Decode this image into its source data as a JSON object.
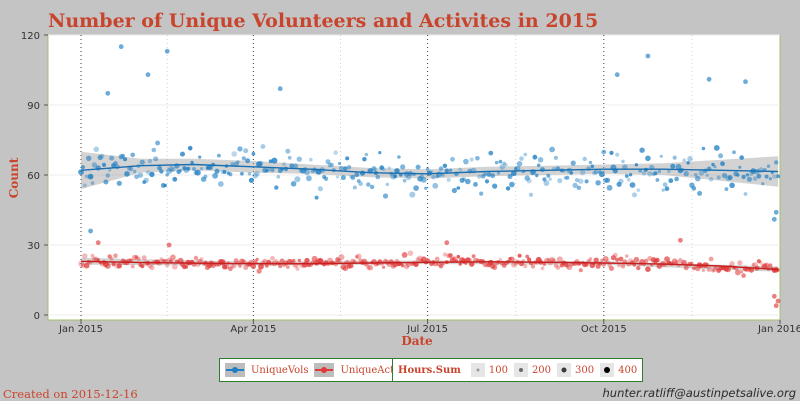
{
  "chart_data": {
    "type": "scatter",
    "title": "Number of Unique Volunteers and Activites in 2015",
    "xlabel": "Date",
    "ylabel": "Count",
    "x_range": [
      "2015-01-01",
      "2016-01-01"
    ],
    "ylim": [
      0,
      120
    ],
    "y_ticks": [
      0,
      30,
      60,
      90,
      120
    ],
    "x_ticks": [
      {
        "date": "2015-01-01",
        "label": "Jan 2015"
      },
      {
        "date": "2015-04-01",
        "label": "Apr 2015"
      },
      {
        "date": "2015-07-01",
        "label": "Jul 2015"
      },
      {
        "date": "2015-10-01",
        "label": "Oct 2015"
      },
      {
        "date": "2016-01-01",
        "label": "Jan 2016"
      }
    ],
    "series": [
      {
        "name": "UniqueVols",
        "color": "#1f7fc4",
        "smooth": [
          [
            "2015-01-01",
            62
          ],
          [
            "2015-02-01",
            64
          ],
          [
            "2015-03-01",
            64.5
          ],
          [
            "2015-04-01",
            63.5
          ],
          [
            "2015-05-01",
            62.5
          ],
          [
            "2015-06-01",
            61
          ],
          [
            "2015-07-01",
            60.5
          ],
          [
            "2015-08-01",
            61.5
          ],
          [
            "2015-09-01",
            62
          ],
          [
            "2015-10-01",
            62.5
          ],
          [
            "2015-11-01",
            62.5
          ],
          [
            "2015-12-01",
            62
          ],
          [
            "2015-12-31",
            61.5
          ]
        ],
        "band": [
          [
            "2015-01-01",
            54,
            70
          ],
          [
            "2015-02-01",
            61,
            67
          ],
          [
            "2015-03-01",
            62,
            67
          ],
          [
            "2015-04-01",
            61,
            66
          ],
          [
            "2015-05-01",
            60.5,
            64.5
          ],
          [
            "2015-06-01",
            59,
            63
          ],
          [
            "2015-07-01",
            58.5,
            62.5
          ],
          [
            "2015-08-01",
            59.5,
            63.5
          ],
          [
            "2015-09-01",
            60,
            64
          ],
          [
            "2015-10-01",
            60.5,
            64.5
          ],
          [
            "2015-11-01",
            60,
            65
          ],
          [
            "2015-12-01",
            57.5,
            66.5
          ],
          [
            "2015-12-31",
            55,
            68
          ]
        ],
        "trend_anchors": [
          [
            "2015-01-01",
            62
          ],
          [
            "2015-03-01",
            64
          ],
          [
            "2015-05-15",
            62
          ],
          [
            "2015-07-01",
            60
          ],
          [
            "2015-09-15",
            62
          ],
          [
            "2015-12-31",
            61
          ]
        ],
        "spread": 13,
        "outliers": [
          [
            "2015-01-22",
            115
          ],
          [
            "2015-02-15",
            113
          ],
          [
            "2015-02-05",
            103
          ],
          [
            "2015-01-15",
            95
          ],
          [
            "2015-10-24",
            111
          ],
          [
            "2015-10-08",
            103
          ],
          [
            "2015-11-25",
            101
          ],
          [
            "2015-12-14",
            100
          ],
          [
            "2015-04-15",
            97
          ],
          [
            "2015-01-06",
            36
          ],
          [
            "2015-12-29",
            41
          ],
          [
            "2015-12-30",
            44
          ]
        ]
      },
      {
        "name": "UniqueActivity",
        "color": "#e03a3a",
        "smooth": [
          [
            "2015-01-01",
            23
          ],
          [
            "2015-02-01",
            22.5
          ],
          [
            "2015-03-01",
            22.2
          ],
          [
            "2015-04-01",
            22
          ],
          [
            "2015-05-01",
            22
          ],
          [
            "2015-06-01",
            22.3
          ],
          [
            "2015-07-01",
            22.6
          ],
          [
            "2015-08-01",
            22.8
          ],
          [
            "2015-09-01",
            22.6
          ],
          [
            "2015-10-01",
            22.3
          ],
          [
            "2015-11-01",
            21.8
          ],
          [
            "2015-12-01",
            21
          ],
          [
            "2015-12-31",
            19.5
          ]
        ],
        "band": [
          [
            "2015-01-01",
            21.5,
            24.5
          ],
          [
            "2015-04-01",
            21.2,
            22.8
          ],
          [
            "2015-07-01",
            21.8,
            23.4
          ],
          [
            "2015-10-01",
            21.5,
            23.1
          ],
          [
            "2015-12-31",
            18.5,
            20.8
          ]
        ],
        "trend_anchors": [
          [
            "2015-01-01",
            23
          ],
          [
            "2015-04-01",
            22
          ],
          [
            "2015-07-15",
            23
          ],
          [
            "2015-10-01",
            22.5
          ],
          [
            "2015-12-31",
            20
          ]
        ],
        "spread": 4,
        "outliers": [
          [
            "2015-01-10",
            31
          ],
          [
            "2015-02-16",
            30
          ],
          [
            "2015-11-10",
            32
          ],
          [
            "2015-07-11",
            31
          ],
          [
            "2015-12-29",
            8
          ],
          [
            "2015-12-30",
            4
          ],
          [
            "2015-12-31",
            6
          ]
        ]
      }
    ],
    "legend": {
      "line_entries": [
        "UniqueVols",
        "UniqueActivity"
      ],
      "size_title": "Hours.Sum",
      "size_labels": [
        "100",
        "200",
        "300",
        "400"
      ],
      "placement": "bottom"
    },
    "grid": true
  },
  "footer": {
    "created": "Created on 2015-12-16",
    "email": "hunter.ratliff@austinpetsalive.org"
  }
}
